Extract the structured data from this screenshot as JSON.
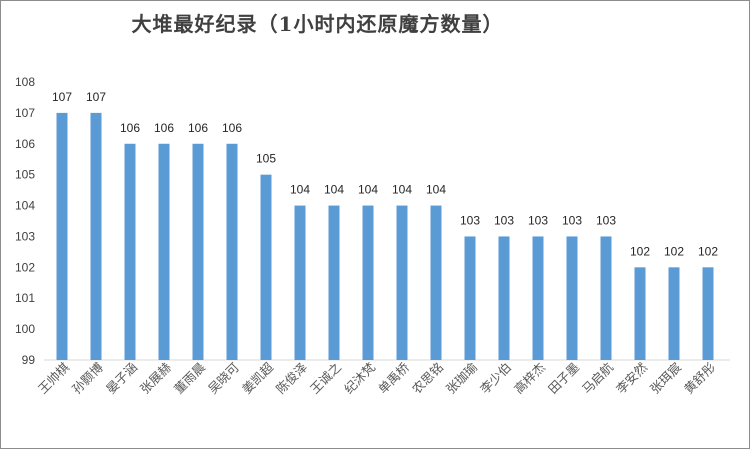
{
  "chart_data": {
    "type": "bar",
    "title": "大堆最好纪录（1小时内还原魔方数量）",
    "xlabel": "",
    "ylabel": "",
    "ylim": [
      99,
      108
    ],
    "yticks": [
      99,
      100,
      101,
      102,
      103,
      104,
      105,
      106,
      107,
      108
    ],
    "grid": false,
    "legend": "none",
    "bar_color": "#5b9bd5",
    "categories": [
      "王帅棋",
      "孙颢博",
      "晏子涵",
      "张展赫",
      "董雨晨",
      "吴晓可",
      "姜凯超",
      "陈俊泽",
      "王诚之",
      "纪沐梵",
      "单禹桥",
      "农思铭",
      "张珈瑜",
      "李少伯",
      "高梓杰",
      "田子墨",
      "马启航",
      "李安然",
      "张珥宸",
      "黄舒彤"
    ],
    "values": [
      107,
      107,
      106,
      106,
      106,
      106,
      105,
      104,
      104,
      104,
      104,
      104,
      103,
      103,
      103,
      103,
      103,
      102,
      102,
      102
    ]
  }
}
